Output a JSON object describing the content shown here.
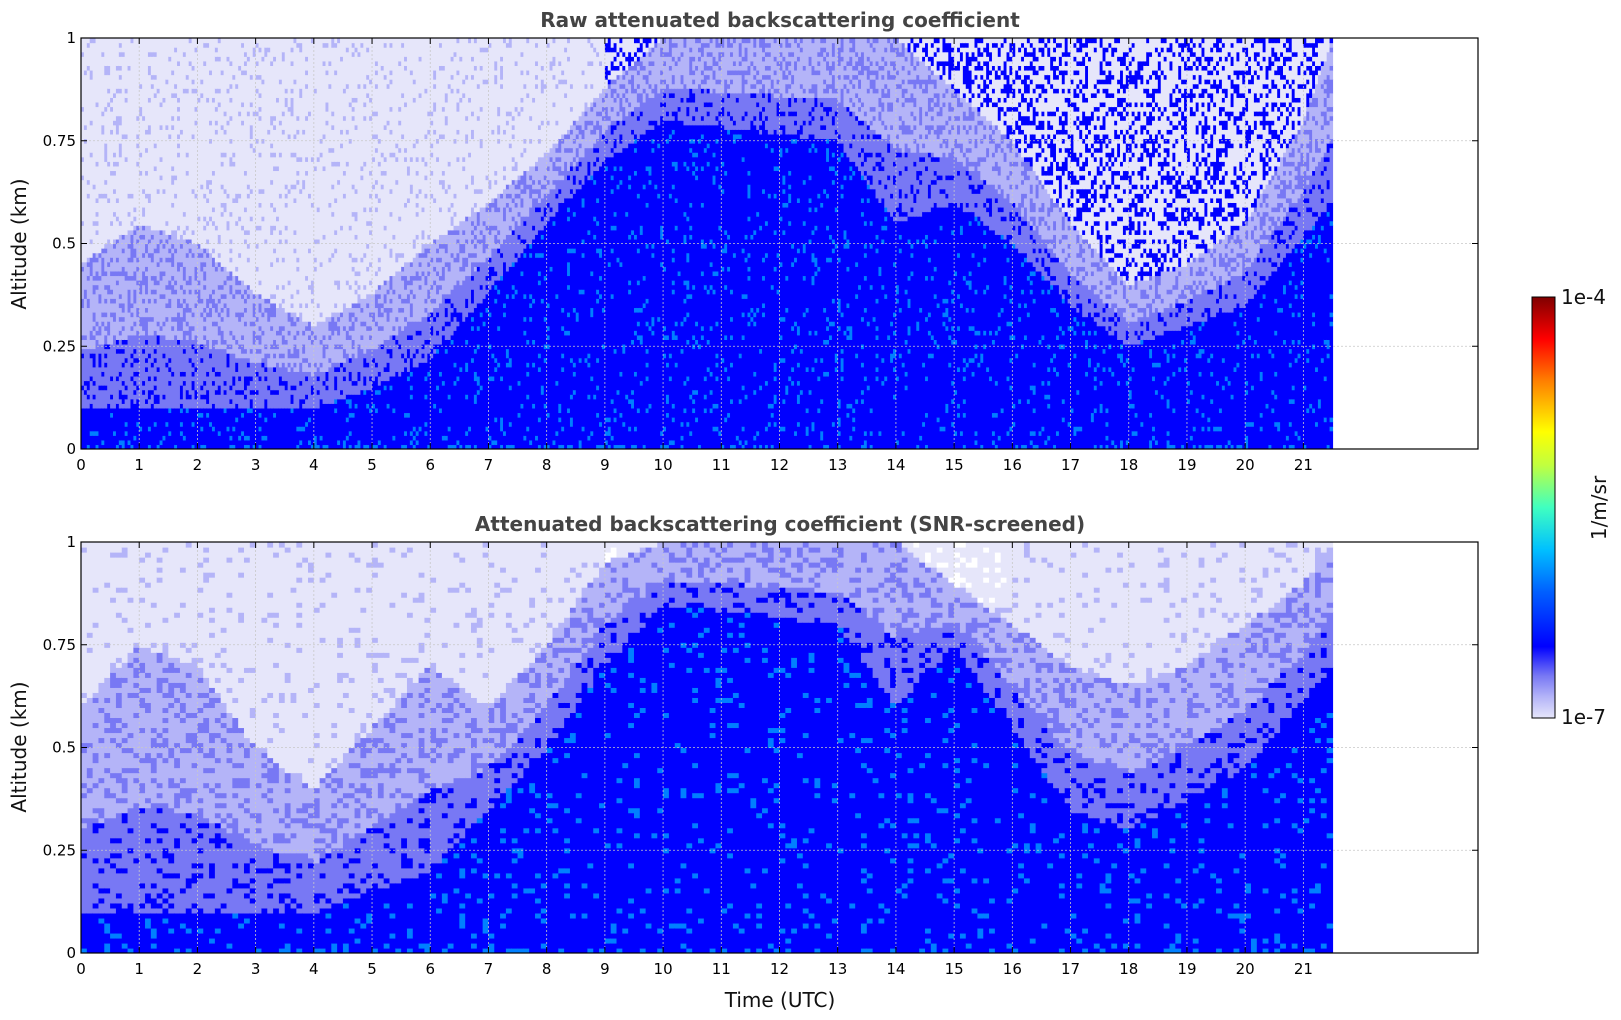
{
  "chart_data": [
    {
      "type": "heatmap",
      "title": "Raw attenuated backscattering coefficient",
      "xlabel": "",
      "ylabel": "Altitude (km)",
      "xlim": [
        0,
        24
      ],
      "ylim": [
        0,
        1
      ],
      "data_end_time": 21.5,
      "x_ticks": [
        "0",
        "1",
        "2",
        "3",
        "4",
        "5",
        "6",
        "7",
        "8",
        "9",
        "10",
        "11",
        "12",
        "13",
        "14",
        "15",
        "16",
        "17",
        "18",
        "19",
        "20",
        "21"
      ],
      "y_ticks": [
        "0",
        "0.25",
        "0.5",
        "0.75",
        "1"
      ],
      "grid": true,
      "screened": false,
      "mixed_layer_top_km": [
        {
          "t": 0,
          "h": 0.45
        },
        {
          "t": 1,
          "h": 0.55
        },
        {
          "t": 2,
          "h": 0.5
        },
        {
          "t": 3,
          "h": 0.38
        },
        {
          "t": 4,
          "h": 0.3
        },
        {
          "t": 5,
          "h": 0.38
        },
        {
          "t": 6,
          "h": 0.5
        },
        {
          "t": 7,
          "h": 0.6
        },
        {
          "t": 8,
          "h": 0.72
        },
        {
          "t": 9,
          "h": 0.88
        },
        {
          "t": 10,
          "h": 1.0
        },
        {
          "t": 14,
          "h": 1.0
        },
        {
          "t": 16,
          "h": 0.75
        },
        {
          "t": 17,
          "h": 0.55
        },
        {
          "t": 18,
          "h": 0.4
        },
        {
          "t": 19,
          "h": 0.45
        },
        {
          "t": 20,
          "h": 0.55
        },
        {
          "t": 21,
          "h": 0.8
        },
        {
          "t": 21.5,
          "h": 1.0
        }
      ],
      "surface_layer_top_km": [
        {
          "t": 0,
          "h": 0.1
        },
        {
          "t": 4,
          "h": 0.1
        },
        {
          "t": 5,
          "h": 0.15
        },
        {
          "t": 6,
          "h": 0.22
        },
        {
          "t": 7,
          "h": 0.38
        },
        {
          "t": 8,
          "h": 0.55
        },
        {
          "t": 9,
          "h": 0.7
        },
        {
          "t": 10,
          "h": 0.8
        },
        {
          "t": 13,
          "h": 0.75
        },
        {
          "t": 14,
          "h": 0.55
        },
        {
          "t": 15,
          "h": 0.6
        },
        {
          "t": 16,
          "h": 0.5
        },
        {
          "t": 17,
          "h": 0.35
        },
        {
          "t": 18,
          "h": 0.25
        },
        {
          "t": 20,
          "h": 0.35
        },
        {
          "t": 21.5,
          "h": 0.6
        }
      ]
    },
    {
      "type": "heatmap",
      "title": "Attenuated backscattering coefficient (SNR-screened)",
      "xlabel": "Time (UTC)",
      "ylabel": "Altitude (km)",
      "xlim": [
        0,
        24
      ],
      "ylim": [
        0,
        1
      ],
      "data_end_time": 21.5,
      "x_ticks": [
        "0",
        "1",
        "2",
        "3",
        "4",
        "5",
        "6",
        "7",
        "8",
        "9",
        "10",
        "11",
        "12",
        "13",
        "14",
        "15",
        "16",
        "17",
        "18",
        "19",
        "20",
        "21"
      ],
      "y_ticks": [
        "0",
        "0.25",
        "0.5",
        "0.75",
        "1"
      ],
      "grid": true,
      "screened": true,
      "mixed_layer_top_km": [
        {
          "t": 0,
          "h": 0.6
        },
        {
          "t": 1,
          "h": 0.75
        },
        {
          "t": 2,
          "h": 0.7
        },
        {
          "t": 3,
          "h": 0.5
        },
        {
          "t": 4,
          "h": 0.4
        },
        {
          "t": 5,
          "h": 0.55
        },
        {
          "t": 6,
          "h": 0.7
        },
        {
          "t": 7,
          "h": 0.6
        },
        {
          "t": 8,
          "h": 0.75
        },
        {
          "t": 9,
          "h": 0.95
        },
        {
          "t": 10,
          "h": 1.0
        },
        {
          "t": 14,
          "h": 1.0
        },
        {
          "t": 16,
          "h": 0.8
        },
        {
          "t": 17,
          "h": 0.7
        },
        {
          "t": 18,
          "h": 0.65
        },
        {
          "t": 19,
          "h": 0.7
        },
        {
          "t": 20,
          "h": 0.8
        },
        {
          "t": 21,
          "h": 0.9
        },
        {
          "t": 21.5,
          "h": 1.0
        }
      ],
      "surface_layer_top_km": [
        {
          "t": 0,
          "h": 0.1
        },
        {
          "t": 4,
          "h": 0.1
        },
        {
          "t": 5,
          "h": 0.15
        },
        {
          "t": 6,
          "h": 0.2
        },
        {
          "t": 7,
          "h": 0.35
        },
        {
          "t": 8,
          "h": 0.5
        },
        {
          "t": 9,
          "h": 0.7
        },
        {
          "t": 10,
          "h": 0.85
        },
        {
          "t": 13,
          "h": 0.8
        },
        {
          "t": 14,
          "h": 0.6
        },
        {
          "t": 15,
          "h": 0.75
        },
        {
          "t": 16,
          "h": 0.55
        },
        {
          "t": 17,
          "h": 0.35
        },
        {
          "t": 18,
          "h": 0.3
        },
        {
          "t": 20,
          "h": 0.45
        },
        {
          "t": 21.5,
          "h": 0.7
        }
      ]
    }
  ],
  "colorbar": {
    "label": "1/m/sr",
    "max_label": "1e-4",
    "min_label": "1e-7",
    "colors": [
      "#e6e6fa",
      "#b4b4f8",
      "#7878f4",
      "#0000ff",
      "#0080ff",
      "#00ffff",
      "#80ff80",
      "#ffff00",
      "#ff8000",
      "#ff0000",
      "#800000"
    ]
  }
}
